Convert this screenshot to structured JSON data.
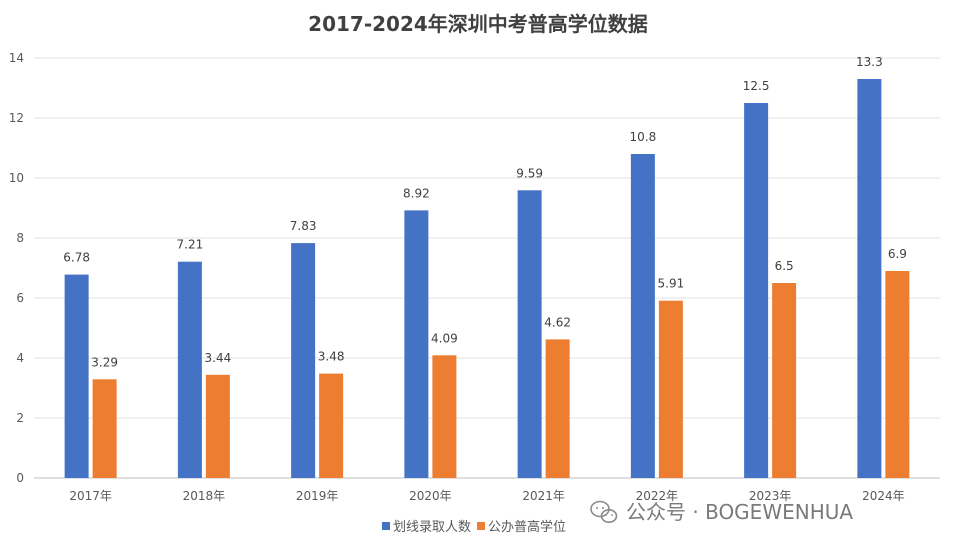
{
  "chart_data": {
    "type": "bar",
    "title": "2017-2024年深圳中考普高学位数据",
    "categories": [
      "2017年",
      "2018年",
      "2019年",
      "2020年",
      "2021年",
      "2022年",
      "2023年",
      "2024年"
    ],
    "series": [
      {
        "name": "划线录取人数",
        "color": "#4472C4",
        "values": [
          6.78,
          7.21,
          7.83,
          8.92,
          9.59,
          10.8,
          12.5,
          13.3
        ],
        "labels": [
          "6.78",
          "7.21",
          "7.83",
          "8.92",
          "9.59",
          "10.8",
          "12.5",
          "13.3"
        ]
      },
      {
        "name": "公办普高学位",
        "color": "#ED7D31",
        "values": [
          3.29,
          3.44,
          3.48,
          4.09,
          4.62,
          5.91,
          6.5,
          6.9
        ],
        "labels": [
          "3.29",
          "3.44",
          "3.48",
          "4.09",
          "4.62",
          "5.91",
          "6.5",
          "6.9"
        ]
      }
    ],
    "ylim": [
      0,
      14
    ],
    "yticks": [
      "0",
      "2",
      "4",
      "6",
      "8",
      "10",
      "12",
      "14"
    ],
    "grid": true,
    "legend": "bottom-center"
  },
  "watermark": {
    "text": "公众号 · BOGEWENHUA",
    "icon": "wechat-icon"
  }
}
